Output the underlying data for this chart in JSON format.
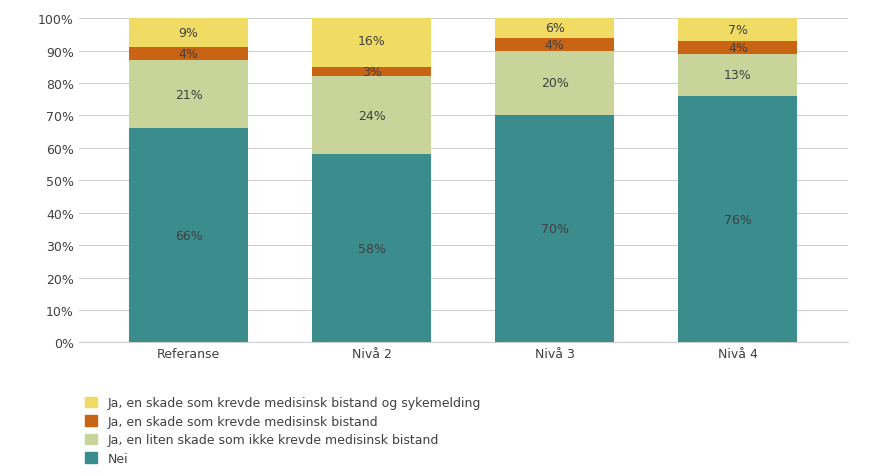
{
  "categories": [
    "Referanse",
    "Nivå 2",
    "Nivå 3",
    "Nivå 4"
  ],
  "series": [
    {
      "label": "Nei",
      "values": [
        66,
        58,
        70,
        76
      ],
      "color": "#3B8C8C"
    },
    {
      "label": "Ja, en liten skade som ikke krevde medisinsk bistand",
      "values": [
        21,
        24,
        20,
        13
      ],
      "color": "#C8D49A"
    },
    {
      "label": "Ja, en skade som krevde medisinsk bistand",
      "values": [
        4,
        3,
        4,
        4
      ],
      "color": "#C86414"
    },
    {
      "label": "Ja, en skade som krevde medisinsk bistand og sykemelding",
      "values": [
        9,
        16,
        6,
        7
      ],
      "color": "#F0DC64"
    }
  ],
  "ylim": [
    0,
    100
  ],
  "yticks": [
    0,
    10,
    20,
    30,
    40,
    50,
    60,
    70,
    80,
    90,
    100
  ],
  "ytick_labels": [
    "0%",
    "10%",
    "20%",
    "30%",
    "40%",
    "50%",
    "60%",
    "70%",
    "80%",
    "90%",
    "100%"
  ],
  "bar_width": 0.65,
  "background_color": "#ffffff",
  "grid_color": "#d0d0d0",
  "text_color": "#404040",
  "font_size_labels": 9,
  "font_size_ticks": 9,
  "legend_font_size": 9
}
